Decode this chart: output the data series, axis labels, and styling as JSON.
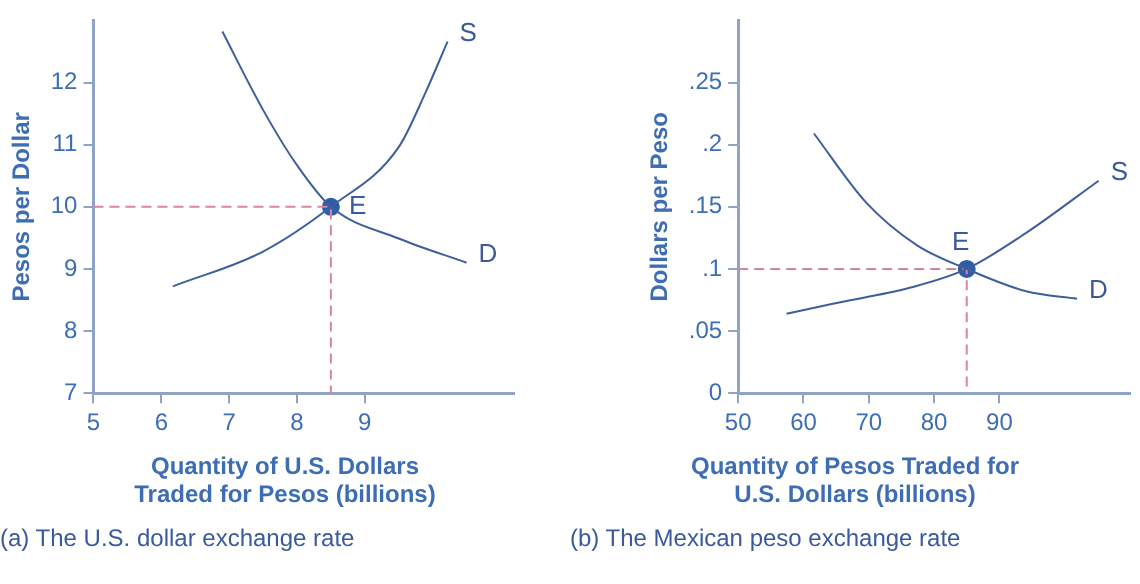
{
  "chart_data": [
    {
      "type": "line",
      "xlabel": "Quantity of U.S. Dollars Traded for Pesos (billions)",
      "ylabel": "Pesos per Dollar",
      "xlim": [
        5,
        11.2
      ],
      "ylim": [
        7,
        13
      ],
      "xticks": [
        5,
        6,
        7,
        8,
        9
      ],
      "yticks": [
        7,
        8,
        9,
        10,
        11,
        12
      ],
      "grid": false,
      "legend": false,
      "annotations": [
        {
          "text": "E",
          "x": 8.5,
          "y": 10
        },
        "(a) The U.S. dollar exchange rate"
      ],
      "series": [
        {
          "name": "S",
          "color": "#3d5f9e",
          "marker": "none",
          "x": [
            6.17,
            7.5,
            8.5,
            9.5,
            9.9,
            10.22
          ],
          "values": [
            8.72,
            9.28,
            10,
            10.96,
            11.85,
            12.66
          ]
        },
        {
          "name": "D",
          "color": "#3d5f9e",
          "marker": "none",
          "x": [
            6.9,
            7.5,
            8,
            8.5,
            9.5,
            10.5
          ],
          "values": [
            12.82,
            11.56,
            10.67,
            10,
            9.49,
            9.1
          ]
        },
        {
          "color": "#d9849f",
          "marker": "none",
          "line_style": "dashed",
          "x": [
            5,
            8.5,
            8.5
          ],
          "values": [
            10,
            10,
            7
          ]
        },
        {
          "type": "scatter",
          "color": "#2f5ba8",
          "marker": "circle",
          "x": [
            8.5
          ],
          "values": [
            10
          ]
        }
      ]
    },
    {
      "type": "line",
      "xlabel": "Quantity of Pesos Traded for U.S. Dollars (billions)",
      "ylabel": "Dollars per Peso",
      "xlim": [
        50,
        110
      ],
      "ylim": [
        0,
        0.3
      ],
      "xticks": [
        50,
        60,
        70,
        80,
        90
      ],
      "yticks": [
        0,
        {
          "value": 0.05,
          "label": ".05"
        },
        {
          "value": 0.1,
          "label": ".1"
        },
        {
          "value": 0.15,
          "label": ".15"
        },
        {
          "value": 0.2,
          "label": ".2"
        },
        {
          "value": 0.25,
          "label": ".25"
        }
      ],
      "grid": false,
      "legend": false,
      "annotations": [
        {
          "text": "E",
          "x": 85,
          "y": 0.1
        },
        "(b) The Mexican peso exchange rate"
      ],
      "series": [
        {
          "name": "S",
          "color": "#3d5f9e",
          "marker": "none",
          "x": [
            57.4,
            64.5,
            76.4,
            85,
            94.1,
            105.2
          ],
          "values": [
            0.064,
            0.072,
            0.085,
            0.1,
            0.129,
            0.171
          ]
        },
        {
          "name": "D",
          "color": "#3d5f9e",
          "marker": "none",
          "x": [
            61.6,
            69.5,
            77.4,
            85,
            94.1,
            101.9
          ],
          "values": [
            0.209,
            0.154,
            0.119,
            0.1,
            0.082,
            0.076
          ]
        },
        {
          "color": "#d9849f",
          "marker": "none",
          "line_style": "dashed",
          "x": [
            50,
            85,
            85
          ],
          "values": [
            0.1,
            0.1,
            0
          ]
        },
        {
          "type": "scatter",
          "color": "#2f5ba8",
          "marker": "circle",
          "x": [
            85
          ],
          "values": [
            0.1
          ]
        }
      ]
    }
  ]
}
